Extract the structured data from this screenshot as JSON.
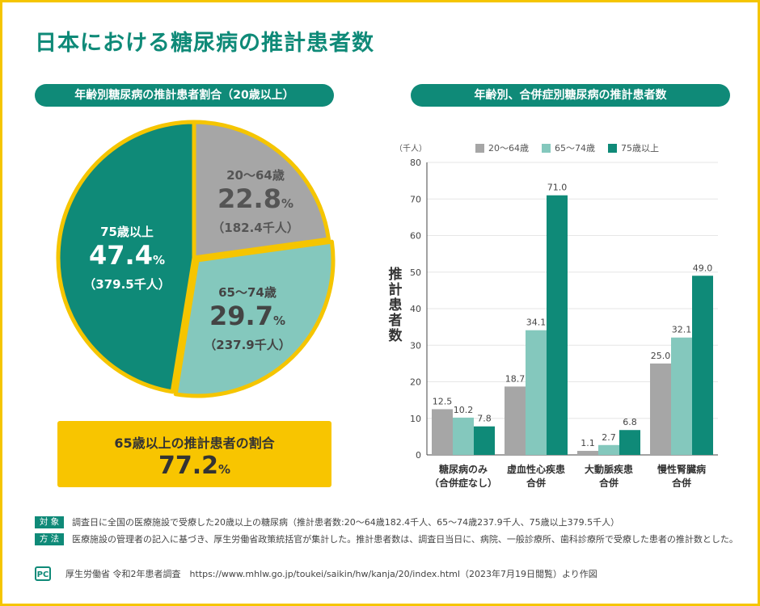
{
  "title": "日本における糖尿病の推計患者数",
  "left_header": "年齢別糖尿病の推計患者割合（20歳以上）",
  "right_header": "年齢別、合併症別糖尿病の推計患者数",
  "summary": {
    "label": "65歳以上の推計患者の割合",
    "value": "77.2",
    "unit": "%"
  },
  "colors": {
    "teal": "#0f8a78",
    "light_teal": "#84c8bd",
    "gray": "#a6a6a6",
    "yellow": "#f5c500"
  },
  "chart_data": [
    {
      "type": "pie",
      "slices": [
        {
          "name": "20〜64歳",
          "pct": "22.8",
          "unit": "%",
          "sub": "（182.4千人）",
          "value": 22.8,
          "color": "#a6a6a6"
        },
        {
          "name": "65〜74歳",
          "pct": "29.7",
          "unit": "%",
          "sub": "（237.9千人）",
          "value": 29.7,
          "color": "#84c8bd"
        },
        {
          "name": "75歳以上",
          "pct": "47.4",
          "unit": "%",
          "sub": "（379.5千人）",
          "value": 47.4,
          "color": "#0f8a78"
        }
      ]
    },
    {
      "type": "bar",
      "unit_label": "（千人）",
      "ylabel": "推計患者数",
      "ylim": [
        0,
        80
      ],
      "yticks": [
        0,
        10,
        20,
        30,
        40,
        50,
        60,
        70,
        80
      ],
      "categories": [
        [
          "糖尿病のみ",
          "（合併症なし）"
        ],
        [
          "虚血性心疾患",
          "合併"
        ],
        [
          "大動脈疾患",
          "合併"
        ],
        [
          "慢性腎臓病",
          "合併"
        ]
      ],
      "series": [
        {
          "name": "20〜64歳",
          "color": "#a6a6a6",
          "values": [
            12.5,
            18.7,
            1.1,
            25.0
          ]
        },
        {
          "name": "65〜74歳",
          "color": "#84c8bd",
          "values": [
            10.2,
            34.1,
            2.7,
            32.1
          ]
        },
        {
          "name": "75歳以上",
          "color": "#0f8a78",
          "values": [
            7.8,
            71.0,
            6.8,
            49.0
          ]
        }
      ]
    }
  ],
  "notes": [
    {
      "tag": "対 象",
      "text": "調査日に全国の医療施設で受療した20歳以上の糖尿病（推計患者数:20〜64歳182.4千人、65〜74歳237.9千人、75歳以上379.5千人）"
    },
    {
      "tag": "方 法",
      "text": "医療施設の管理者の記入に基づき、厚生労働省政策統括官が集計した。推計患者数は、調査日当日に、病院、一般診療所、歯科診療所で受療した患者の推計数とした。"
    }
  ],
  "source": {
    "logo": "PC",
    "text": "厚生労働省 令和2年患者調査　https://www.mhlw.go.jp/toukei/saikin/hw/kanja/20/index.html（2023年7月19日閲覧）より作図"
  }
}
